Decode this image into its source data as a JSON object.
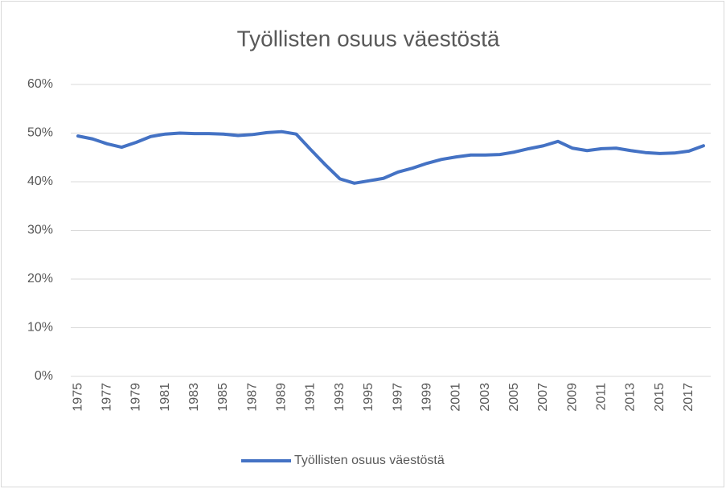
{
  "chart_data": {
    "type": "line",
    "title": "Työllisten osuus väestöstä",
    "categories": [
      "1975",
      null,
      "1977",
      null,
      "1979",
      null,
      "1981",
      null,
      "1983",
      null,
      "1985",
      null,
      "1987",
      null,
      "1989",
      null,
      "1991",
      null,
      "1993",
      null,
      "1995",
      null,
      "1997",
      null,
      "1999",
      null,
      "2001",
      null,
      "2003",
      null,
      "2005",
      null,
      "2007",
      null,
      "2009",
      null,
      "2011",
      null,
      "2013",
      null,
      "2015",
      null,
      "2017",
      null
    ],
    "series": [
      {
        "name": "Työllisten osuus väestöstä",
        "color": "#4472c4",
        "values": [
          49.4,
          48.8,
          47.8,
          47.1,
          48.1,
          49.3,
          49.8,
          50.0,
          49.9,
          49.9,
          49.8,
          49.5,
          49.7,
          50.1,
          50.3,
          49.8,
          46.6,
          43.5,
          40.6,
          39.7,
          40.2,
          40.7,
          42.0,
          42.8,
          43.8,
          44.6,
          45.1,
          45.5,
          45.5,
          45.6,
          46.1,
          46.8,
          47.4,
          48.3,
          46.9,
          46.4,
          46.8,
          46.9,
          46.4,
          46.0,
          45.8,
          45.9,
          46.3,
          47.4
        ]
      }
    ],
    "ylim": [
      0,
      60
    ],
    "yticks": [
      {
        "value": 0,
        "label": "0%"
      },
      {
        "value": 10,
        "label": "10%"
      },
      {
        "value": 20,
        "label": "20%"
      },
      {
        "value": 30,
        "label": "30%"
      },
      {
        "value": 40,
        "label": "40%"
      },
      {
        "value": 50,
        "label": "50%"
      },
      {
        "value": 60,
        "label": "60%"
      }
    ],
    "grid": true,
    "legend": "bottom"
  }
}
